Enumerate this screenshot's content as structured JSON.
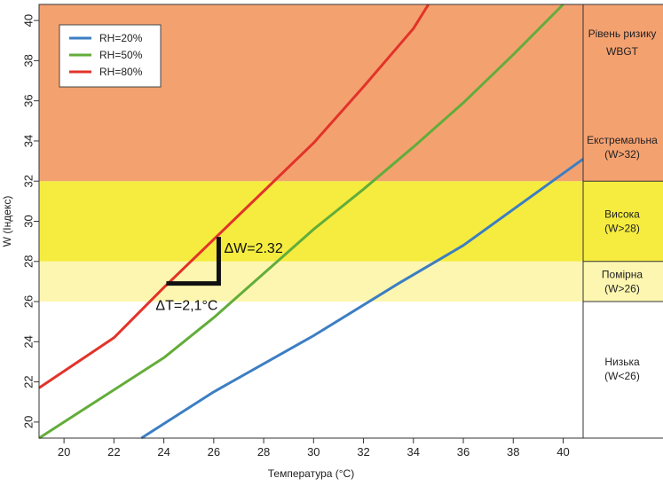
{
  "chart_data": {
    "type": "line",
    "xlabel": "Температура (°C)",
    "ylabel": "W (Індекс)",
    "xlim": [
      19,
      40.8
    ],
    "ylim": [
      19.2,
      40.8
    ],
    "xticks": [
      20,
      22,
      24,
      26,
      28,
      30,
      32,
      34,
      36,
      38,
      40
    ],
    "yticks": [
      20,
      22,
      24,
      26,
      28,
      30,
      32,
      34,
      36,
      38,
      40
    ],
    "grid": false,
    "legend_position": "top-left",
    "series": [
      {
        "name": "RH=20%",
        "color": "#3c7ec3",
        "x": [
          23.1,
          26,
          30,
          33.4,
          36,
          40.8
        ],
        "y": [
          19.2,
          21.5,
          24.3,
          26.9,
          28.8,
          33.1
        ]
      },
      {
        "name": "RH=50%",
        "color": "#62ad3a",
        "x": [
          19,
          21,
          24,
          26,
          28,
          30,
          32,
          34,
          36,
          38,
          40
        ],
        "y": [
          19.2,
          20.8,
          23.2,
          25.2,
          27.4,
          29.6,
          31.6,
          33.7,
          35.9,
          38.3,
          40.8
        ]
      },
      {
        "name": "RH=80%",
        "color": "#e2332a",
        "x": [
          19,
          22,
          24,
          26,
          28,
          30,
          32,
          34,
          34.6
        ],
        "y": [
          21.7,
          24.2,
          26.7,
          29.1,
          31.5,
          33.9,
          36.7,
          39.6,
          40.8
        ]
      }
    ],
    "bands": [
      {
        "name": "low",
        "from": 19.2,
        "to": 26,
        "color": "#ffffff"
      },
      {
        "name": "moderate",
        "from": 26,
        "to": 28,
        "color": "#fdf6b0"
      },
      {
        "name": "high",
        "from": 28,
        "to": 32,
        "color": "#f5ec3f"
      },
      {
        "name": "extreme",
        "from": 32,
        "to": 40.8,
        "color": "#f4a170"
      }
    ],
    "annotations": {
      "delta_w": "ΔW=2.32",
      "delta_t": "ΔT=2,1°C",
      "step": {
        "x0": 24.1,
        "x1": 26.2,
        "y0": 26.9,
        "y1": 29.22
      }
    },
    "risk_table": {
      "header": [
        "Рівень ризику",
        "WBGT"
      ],
      "rows": [
        {
          "lines": [
            "Екстремальна",
            "(W>32)"
          ]
        },
        {
          "lines": [
            "Висока",
            "(W>28)"
          ]
        },
        {
          "lines": [
            "Помірна",
            "(W>26)"
          ]
        },
        {
          "lines": [
            "Низька",
            "(W<26)"
          ]
        }
      ]
    }
  }
}
